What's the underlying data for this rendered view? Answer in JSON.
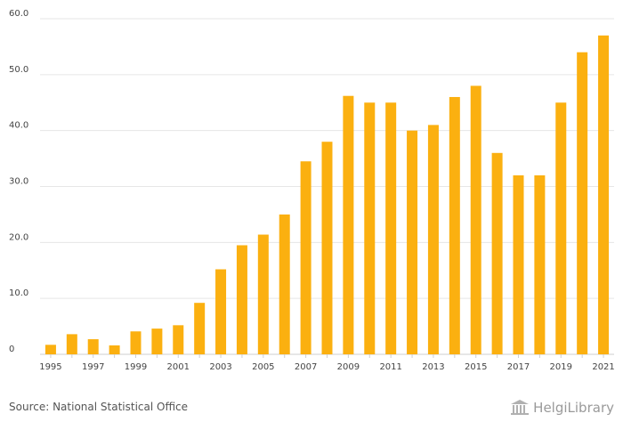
{
  "chart_data": {
    "type": "bar",
    "categories": [
      "1995",
      "1996",
      "1997",
      "1998",
      "1999",
      "2000",
      "2001",
      "2002",
      "2003",
      "2004",
      "2005",
      "2006",
      "2007",
      "2008",
      "2009",
      "2010",
      "2011",
      "2012",
      "2013",
      "2014",
      "2015",
      "2016",
      "2017",
      "2018",
      "2019",
      "2020",
      "2021"
    ],
    "values": [
      1.7,
      3.6,
      2.7,
      1.6,
      4.1,
      4.6,
      5.2,
      9.2,
      15.2,
      19.5,
      21.4,
      25.0,
      34.5,
      38.0,
      46.2,
      45.0,
      45.0,
      40.0,
      41.0,
      46.0,
      48.0,
      36.0,
      32.0,
      32.0,
      45.0,
      54.0,
      57.0
    ],
    "x_tick_labels": [
      "1995",
      "1997",
      "1999",
      "2001",
      "2003",
      "2005",
      "2007",
      "2009",
      "2011",
      "2013",
      "2015",
      "2017",
      "2019",
      "2021"
    ],
    "y_ticks": [
      0,
      10,
      20,
      30,
      40,
      50,
      60
    ],
    "y_tick_labels": [
      "0",
      "10.0",
      "20.0",
      "30.0",
      "40.0",
      "50.0",
      "60.0"
    ],
    "ylim": [
      0,
      60
    ],
    "title": "",
    "xlabel": "",
    "ylabel": "",
    "grid": true,
    "bar_color": "#FBB010"
  },
  "footer": {
    "source": "Source: National Statistical Office",
    "brand": "HelgiLibrary"
  }
}
